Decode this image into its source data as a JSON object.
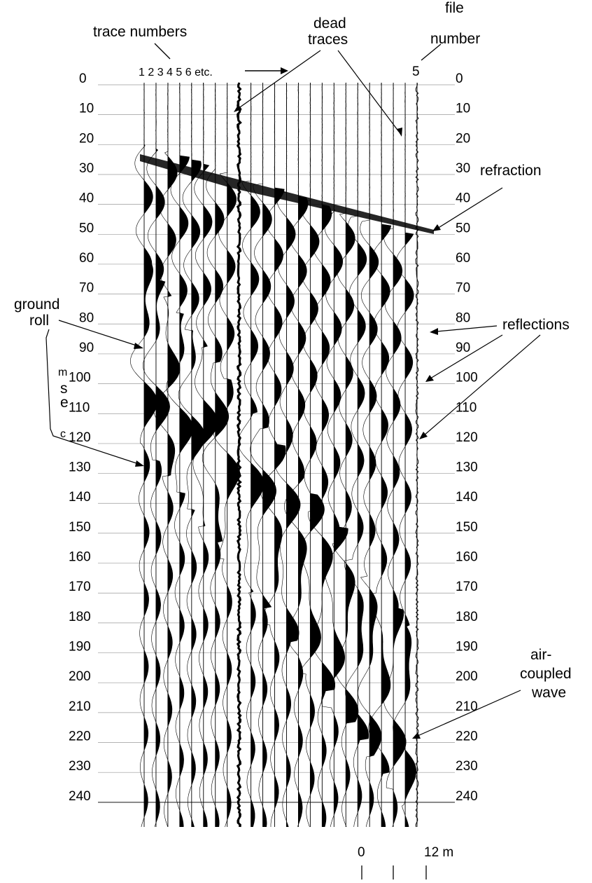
{
  "time_axis": {
    "tick_values": [
      "0",
      "10",
      "20",
      "30",
      "40",
      "50",
      "60",
      "70",
      "80",
      "90",
      "100",
      "110",
      "120",
      "130",
      "140",
      "150",
      "160",
      "170",
      "180",
      "190",
      "200",
      "210",
      "220",
      "230",
      "240"
    ],
    "unit_letters": [
      "m",
      "s",
      "e",
      "c"
    ]
  },
  "header": {
    "trace_numbers_label": "trace numbers",
    "trace_list": "1 2 3 4 5 6 etc.",
    "file_number_line1": "file",
    "file_number_line2": "number",
    "file_number_value": "5"
  },
  "annotations": {
    "dead_traces_line1": "dead",
    "dead_traces_line2": "traces",
    "refraction": "refraction",
    "reflections": "reflections",
    "ground_roll_line1": "ground",
    "ground_roll_line2": "roll",
    "air_coupled_line1": "air-",
    "air_coupled_line2": "coupled",
    "air_coupled_line3": "wave"
  },
  "scale_bar": {
    "start_label": "0",
    "end_label": "12 m"
  },
  "record": {
    "trace_count": 24,
    "dead_trace_indices": [
      8,
      23
    ]
  }
}
